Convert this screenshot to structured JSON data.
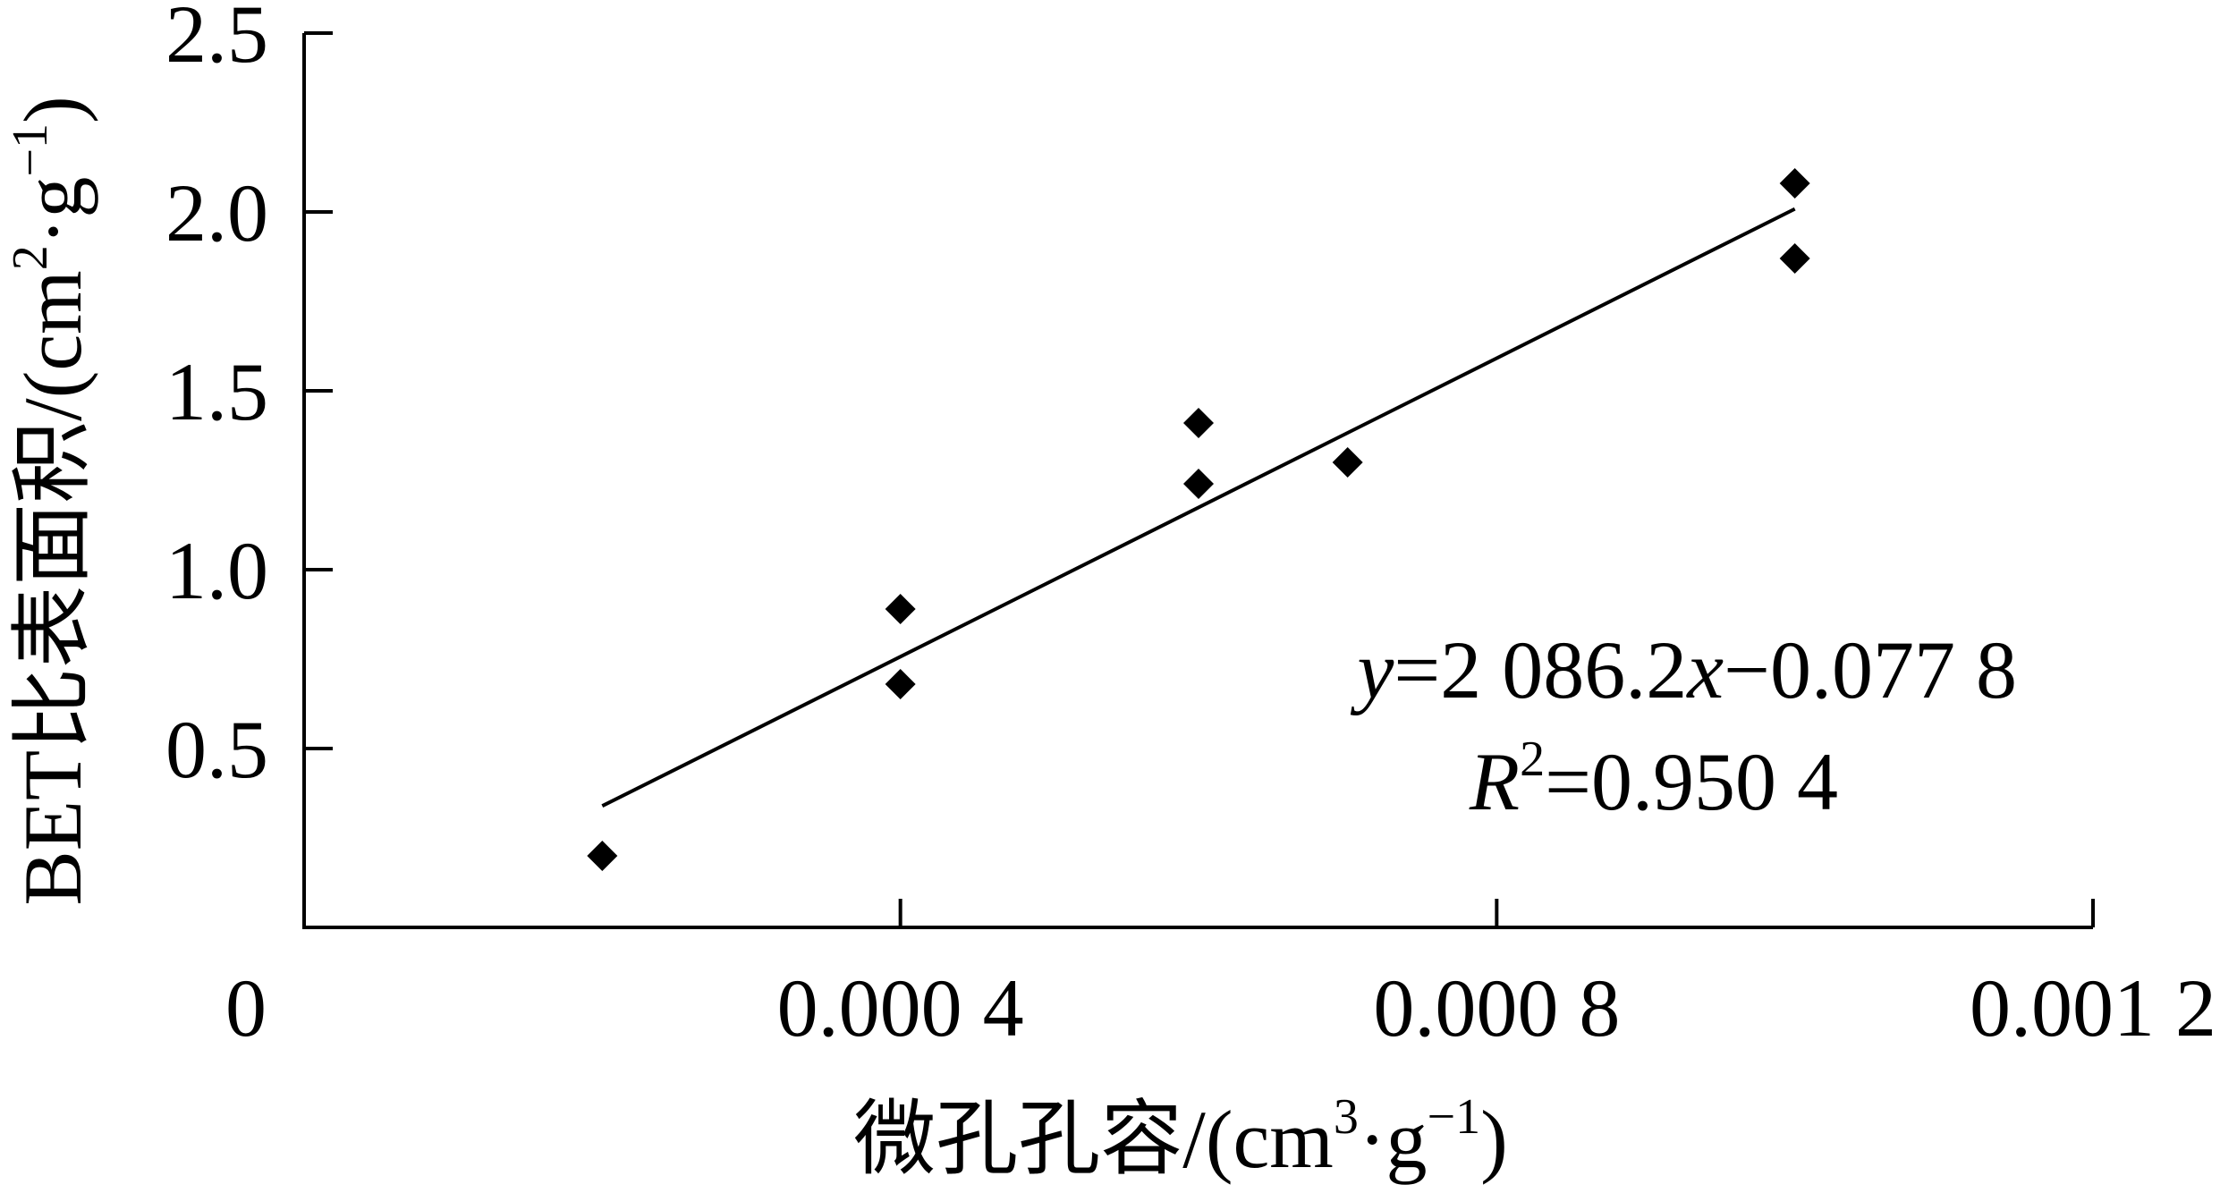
{
  "chart_data": {
    "type": "scatter",
    "xlabel": "微孔孔容/(cm³·g⁻¹)",
    "xlabel_parts": {
      "main": "微孔孔容/(cm",
      "sup1": "3",
      "mid": "·g",
      "sup2": "−1",
      "end": ")"
    },
    "ylabel": "BET比表面积/(cm²·g⁻¹)",
    "ylabel_parts": {
      "main": "BET比表面积/(cm",
      "sup1": "2",
      "mid": "·g",
      "sup2": "−1",
      "end": ")"
    },
    "xlim": [
      0,
      0.0012
    ],
    "ylim": [
      0,
      2.5
    ],
    "x_ticks": [
      0,
      0.0004,
      0.0008,
      0.0012
    ],
    "x_tick_labels": [
      "0",
      "0.000 4",
      "0.000 8",
      "0.001 2"
    ],
    "y_ticks": [
      0.5,
      1.0,
      1.5,
      2.0,
      2.5
    ],
    "y_tick_labels": [
      "0.5",
      "1.0",
      "1.5",
      "2.0",
      "2.5"
    ],
    "points": [
      {
        "x": 0.0002,
        "y": 0.2
      },
      {
        "x": 0.0004,
        "y": 0.89
      },
      {
        "x": 0.0004,
        "y": 0.68
      },
      {
        "x": 0.0006,
        "y": 1.41
      },
      {
        "x": 0.0006,
        "y": 1.24
      },
      {
        "x": 0.0007,
        "y": 1.3
      },
      {
        "x": 0.001,
        "y": 2.08
      },
      {
        "x": 0.001,
        "y": 1.87
      }
    ],
    "fit": {
      "slope": 2086.2,
      "intercept": -0.0778,
      "x_range": [
        0.0002,
        0.001
      ]
    },
    "equation": {
      "line1": {
        "y": "y",
        "eq1": "=2 086.2",
        "x": "x",
        "eq2": "−0.077 8"
      },
      "line2": {
        "R": "R",
        "sup": "2",
        "value": "=0.950 4"
      }
    },
    "grid": false,
    "legend": "none",
    "marker": "diamond",
    "color": "#000000"
  }
}
